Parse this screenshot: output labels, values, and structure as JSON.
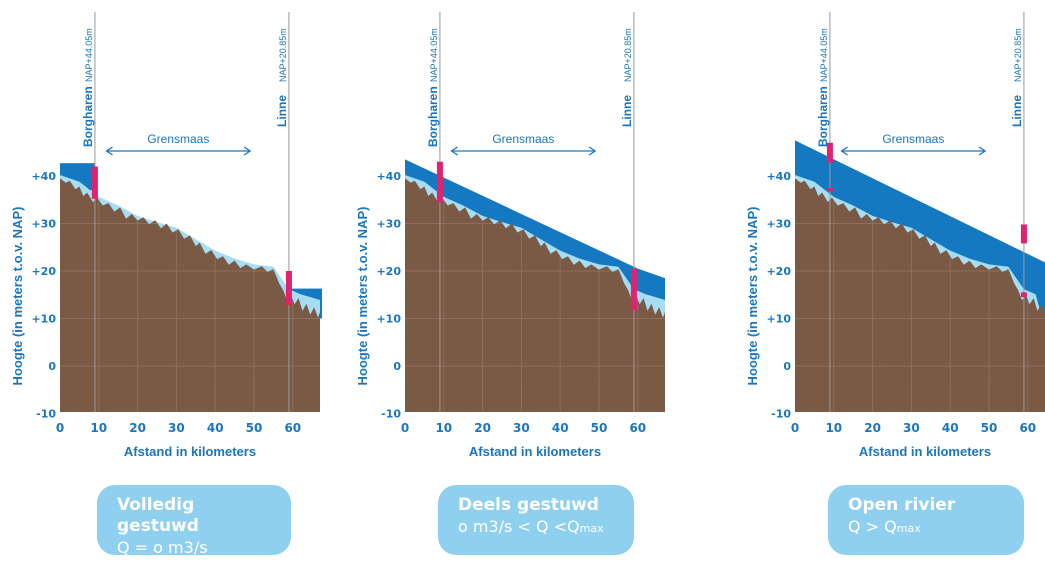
{
  "y_axis_label": "Hoogte (in meters t.o.v. NAP)",
  "x_axis_label": "Afstand in kilometers",
  "x_ticks": [
    "0",
    "10",
    "20",
    "30",
    "40",
    "50",
    "60"
  ],
  "y_ticks": [
    "+40",
    "+30",
    "+20",
    "+10",
    "0",
    "-10"
  ],
  "locations": {
    "borgharen": {
      "name": "Borgharen",
      "level": "NAP+44.05m"
    },
    "linne": {
      "name": "Linne",
      "level": "NAP+20.85m"
    }
  },
  "reach_label": "Grensmaas",
  "colors": {
    "water": "#1479c0",
    "shallow": "#a6dcf4",
    "bed": "#7a5a45",
    "grid": "#9c8271",
    "axis_text": "#1a76bd",
    "marker": "#e0236f",
    "caption_bg": "#8fd0f1"
  },
  "panels": [
    {
      "title": "Volledig gestuwd",
      "condition": "Q = o m3/s",
      "condition_sub": ""
    },
    {
      "title": "Deels gestuwd",
      "condition": "o m3/s < Q <Q",
      "condition_sub": "max"
    },
    {
      "title": "Open rivier",
      "condition": "Q > Q",
      "condition_sub": "max"
    }
  ]
}
